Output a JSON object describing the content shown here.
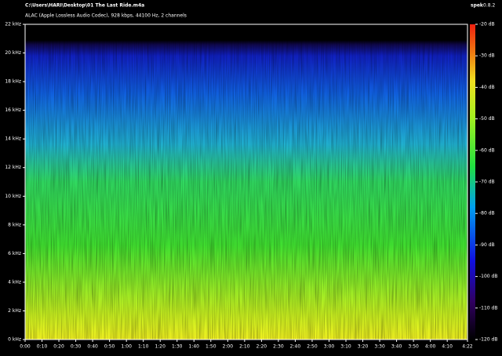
{
  "chart_data": {
    "type": "spectrogram",
    "title": "C:\\Users\\HARI\\Desktop\\01 The Last Ride.m4a",
    "subtitle": "ALAC (Apple Lossless Audio Codec), 928 kbps, 44100 Hz, 2 channels",
    "app_name": "spek",
    "app_version": "0.8.2",
    "xlim": [
      0,
      262
    ],
    "xticks": [
      {
        "value": 0,
        "label": "0:00"
      },
      {
        "value": 10,
        "label": "0:10"
      },
      {
        "value": 20,
        "label": "0:20"
      },
      {
        "value": 30,
        "label": "0:30"
      },
      {
        "value": 40,
        "label": "0:40"
      },
      {
        "value": 50,
        "label": "0:50"
      },
      {
        "value": 60,
        "label": "1:00"
      },
      {
        "value": 70,
        "label": "1:10"
      },
      {
        "value": 80,
        "label": "1:20"
      },
      {
        "value": 90,
        "label": "1:30"
      },
      {
        "value": 100,
        "label": "1:40"
      },
      {
        "value": 110,
        "label": "1:50"
      },
      {
        "value": 120,
        "label": "2:00"
      },
      {
        "value": 130,
        "label": "2:10"
      },
      {
        "value": 140,
        "label": "2:20"
      },
      {
        "value": 150,
        "label": "2:30"
      },
      {
        "value": 160,
        "label": "2:40"
      },
      {
        "value": 170,
        "label": "2:50"
      },
      {
        "value": 180,
        "label": "3:00"
      },
      {
        "value": 190,
        "label": "3:10"
      },
      {
        "value": 200,
        "label": "3:20"
      },
      {
        "value": 210,
        "label": "3:30"
      },
      {
        "value": 220,
        "label": "3:40"
      },
      {
        "value": 230,
        "label": "3:50"
      },
      {
        "value": 240,
        "label": "4:00"
      },
      {
        "value": 250,
        "label": "4:10"
      },
      {
        "value": 262,
        "label": "4:22"
      }
    ],
    "ylim": [
      0,
      22
    ],
    "yticks": [
      {
        "value": 0,
        "label": "0 kHz"
      },
      {
        "value": 2,
        "label": "2 kHz"
      },
      {
        "value": 4,
        "label": "4 kHz"
      },
      {
        "value": 6,
        "label": "6 kHz"
      },
      {
        "value": 8,
        "label": "8 kHz"
      },
      {
        "value": 10,
        "label": "10 kHz"
      },
      {
        "value": 12,
        "label": "12 kHz"
      },
      {
        "value": 14,
        "label": "14 kHz"
      },
      {
        "value": 16,
        "label": "16 kHz"
      },
      {
        "value": 18,
        "label": "18 kHz"
      },
      {
        "value": 20,
        "label": "20 kHz"
      },
      {
        "value": 22,
        "label": "22 kHz"
      }
    ],
    "zlim": [
      -120,
      -20
    ],
    "zticks": [
      {
        "value": -20,
        "label": "-20 dB"
      },
      {
        "value": -30,
        "label": "-30 dB"
      },
      {
        "value": -40,
        "label": "-40 dB"
      },
      {
        "value": -50,
        "label": "-50 dB"
      },
      {
        "value": -60,
        "label": "-60 dB"
      },
      {
        "value": -70,
        "label": "-70 dB"
      },
      {
        "value": -80,
        "label": "-80 dB"
      },
      {
        "value": -90,
        "label": "-90 dB"
      },
      {
        "value": -100,
        "label": "-100 dB"
      },
      {
        "value": -110,
        "label": "-110 dB"
      },
      {
        "value": -120,
        "label": "-120 dB"
      }
    ]
  }
}
